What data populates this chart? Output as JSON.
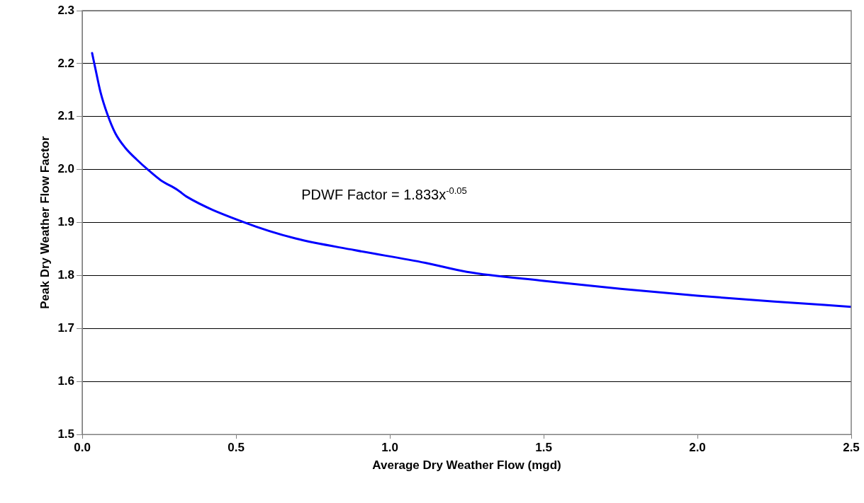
{
  "chart_data": {
    "type": "line",
    "xlabel": "Average Dry Weather Flow (mgd)",
    "ylabel": "Peak Dry Weather Flow Factor",
    "x": [
      0.032,
      0.044,
      0.059,
      0.082,
      0.108,
      0.14,
      0.177,
      0.217,
      0.255,
      0.309,
      0.339,
      0.524,
      0.693,
      0.885,
      1.115,
      1.25,
      1.5,
      1.75,
      2.0,
      2.25,
      2.5
    ],
    "series": [
      {
        "color": "#0000ff",
        "values": [
          2.22,
          2.187,
          2.147,
          2.104,
          2.068,
          2.041,
          2.019,
          1.998,
          1.98,
          1.962,
          1.949,
          1.901,
          1.87,
          1.848,
          1.824,
          1.807,
          1.79,
          1.775,
          1.762,
          1.751,
          1.741
        ]
      }
    ],
    "xlim": [
      0,
      2.5
    ],
    "xticks": [
      {
        "value": 0,
        "label": "0.0"
      },
      0.5,
      {
        "value": 1,
        "label": "1.0"
      },
      1.5,
      {
        "value": 2,
        "label": "2.0"
      },
      2.5
    ],
    "ylim": [
      1.5,
      2.3
    ],
    "yticks": [
      1.5,
      1.6,
      1.7,
      1.8,
      1.9,
      {
        "value": 2,
        "label": "2.0"
      },
      2.1,
      2.2,
      2.3
    ],
    "grid": "y",
    "legend": false,
    "marker": "none",
    "line_style": "solid",
    "annotations": [
      "PDWF Factor = 1.833x$^{-0.05}$"
    ]
  }
}
